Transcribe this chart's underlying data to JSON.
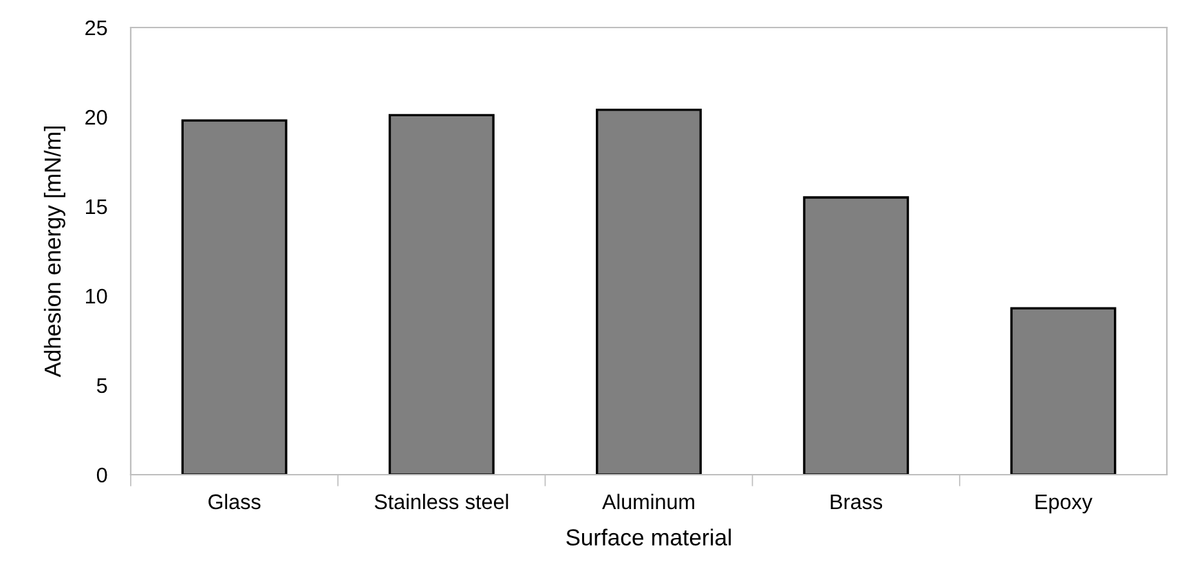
{
  "chart_data": {
    "type": "bar",
    "xlabel": "Surface material",
    "ylabel": "Adhesion energy [mN/m]",
    "categories": [
      "Glass",
      "Stainless steel",
      "Aluminum",
      "Brass",
      "Epoxy"
    ],
    "values": [
      19.8,
      20.1,
      20.4,
      15.5,
      9.3
    ],
    "color": "#808080",
    "ylim": [
      0,
      25
    ],
    "yticks": [
      0,
      5,
      10,
      15,
      20,
      25
    ],
    "grid": false,
    "legend": false
  }
}
